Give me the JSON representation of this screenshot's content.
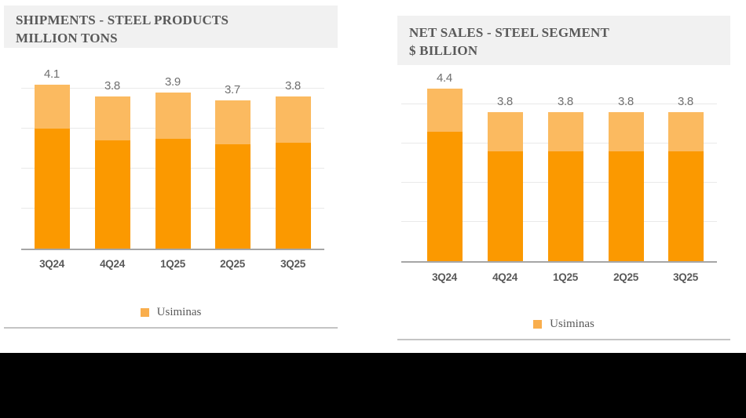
{
  "page": {
    "background_color": "#ffffff",
    "footer_bar_color": "#000000"
  },
  "colors": {
    "title_background": "#f1f1f1",
    "title_text": "#595959",
    "gridline": "#e9e9e9",
    "axis_line": "#a6a6a6",
    "value_label": "#707070",
    "tick_label": "#595959",
    "separator": "#c4c4c4",
    "dark_orange": "#fb9900",
    "light_orange": "#fbba60",
    "legend_swatch": "#f9ae4d"
  },
  "chart_data": [
    {
      "type": "bar",
      "stacked": true,
      "title": "SHIPMENTS - STEEL PRODUCTS",
      "subtitle": "MILLION TONS",
      "categories": [
        "3Q24",
        "4Q24",
        "1Q25",
        "2Q25",
        "3Q25"
      ],
      "totals": [
        4.1,
        3.8,
        3.9,
        3.7,
        3.8
      ],
      "total_labels": [
        "4.1",
        "3.8",
        "3.9",
        "3.7",
        "3.8"
      ],
      "series": [
        {
          "name": "lower-segment",
          "color": "#fb9900",
          "values": [
            3.0,
            2.7,
            2.75,
            2.6,
            2.65
          ]
        },
        {
          "name": "upper-segment",
          "color": "#fbba60",
          "values": [
            1.1,
            1.1,
            1.15,
            1.1,
            1.15
          ]
        }
      ],
      "legend": [
        {
          "label": "Usiminas",
          "color": "#f9ae4d"
        }
      ],
      "ylim": [
        0,
        4.2
      ],
      "grid": true,
      "gridline_step": 1,
      "legend_position": "bottom-center"
    },
    {
      "type": "bar",
      "stacked": true,
      "title": "NET SALES - STEEL SEGMENT",
      "subtitle": "$ BILLION",
      "categories": [
        "3Q24",
        "4Q24",
        "1Q25",
        "2Q25",
        "3Q25"
      ],
      "totals": [
        4.4,
        3.8,
        3.8,
        3.8,
        3.8
      ],
      "total_labels": [
        "4.4",
        "3.8",
        "3.8",
        "3.8",
        "3.8"
      ],
      "series": [
        {
          "name": "lower-segment",
          "color": "#fb9900",
          "values": [
            3.3,
            2.8,
            2.8,
            2.8,
            2.8
          ]
        },
        {
          "name": "upper-segment",
          "color": "#fbba60",
          "values": [
            1.1,
            1.0,
            1.0,
            1.0,
            1.0
          ]
        }
      ],
      "legend": [
        {
          "label": "Usiminas",
          "color": "#f9ae4d"
        }
      ],
      "ylim": [
        0,
        4.6
      ],
      "grid": true,
      "gridline_step": 1,
      "legend_position": "bottom-center"
    }
  ]
}
